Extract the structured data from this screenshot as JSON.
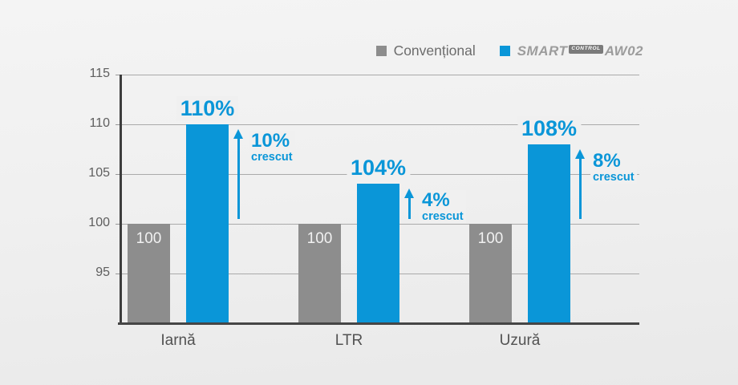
{
  "legend": {
    "conventional_label": "Convențional",
    "smart_brand": {
      "part1": "SMART",
      "badge": "CONTROL",
      "part2": "AW02"
    }
  },
  "chart_data": {
    "type": "bar",
    "title": "",
    "categories": [
      "Iarnă",
      "LTR",
      "Uzură"
    ],
    "series": [
      {
        "name": "Convențional",
        "color": "#8d8d8d",
        "values": [
          100,
          100,
          100
        ],
        "bar_labels": [
          "100",
          "100",
          "100"
        ]
      },
      {
        "name": "SmartControl AW02",
        "color": "#0a96d8",
        "values": [
          110,
          104,
          108
        ],
        "bar_labels": [
          "110%",
          "104%",
          "108%"
        ]
      }
    ],
    "annotations": [
      {
        "delta": "10%",
        "note": "crescut"
      },
      {
        "delta": "4%",
        "note": "crescut"
      },
      {
        "delta": "8%",
        "note": "crescut"
      }
    ],
    "yticks": [
      115,
      110,
      105,
      100,
      95
    ],
    "ylim": [
      90,
      115
    ],
    "grid": true,
    "legend_position": "top-right",
    "colors": {
      "conventional_bar": "#8d8d8d",
      "smartcontrol_bar": "#0a96d8",
      "accent_text": "#0a96d8",
      "gridline": "#aaaaaa",
      "axis": "#454545"
    }
  }
}
